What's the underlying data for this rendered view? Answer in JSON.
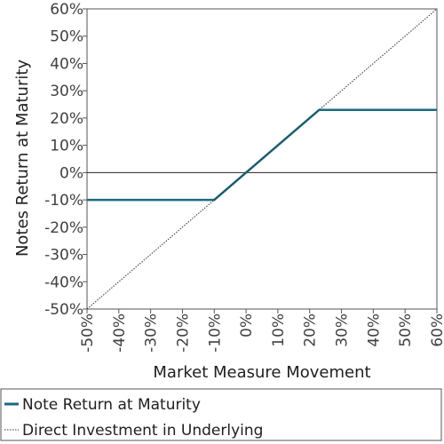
{
  "colors": {
    "note_line": "#1a6b80",
    "underlying_line": "#333333",
    "zero_line": "#222222",
    "frame": "#555555",
    "tick_text": "#404040"
  },
  "chart_data": {
    "type": "line",
    "xlabel": "Market Measure Movement",
    "ylabel": "Notes Return at Maturity",
    "xlim": [
      -50,
      60
    ],
    "ylim": [
      -50,
      60
    ],
    "x_ticks": [
      -50,
      -40,
      -30,
      -20,
      -10,
      0,
      10,
      20,
      30,
      40,
      50,
      60
    ],
    "y_ticks": [
      -50,
      -40,
      -30,
      -20,
      -10,
      0,
      10,
      20,
      30,
      40,
      50,
      60
    ],
    "x_tick_labels": [
      "-50%",
      "-40%",
      "-30%",
      "-20%",
      "-10%",
      "0%",
      "10%",
      "20%",
      "30%",
      "40%",
      "50%",
      "60%"
    ],
    "y_tick_labels": [
      "-50%",
      "-40%",
      "-30%",
      "-20%",
      "-10%",
      "0%",
      "10%",
      "20%",
      "30%",
      "40%",
      "50%",
      "60%"
    ],
    "grid": false,
    "legend_position": "bottom",
    "series": [
      {
        "name": "Note Return at Maturity",
        "style": "solid",
        "x": [
          -50,
          -10,
          23,
          60
        ],
        "y": [
          -10,
          -10,
          23,
          23
        ]
      },
      {
        "name": "Direct Investment in Underlying",
        "style": "dotted",
        "x": [
          -50,
          60
        ],
        "y": [
          -50,
          60
        ]
      }
    ]
  }
}
